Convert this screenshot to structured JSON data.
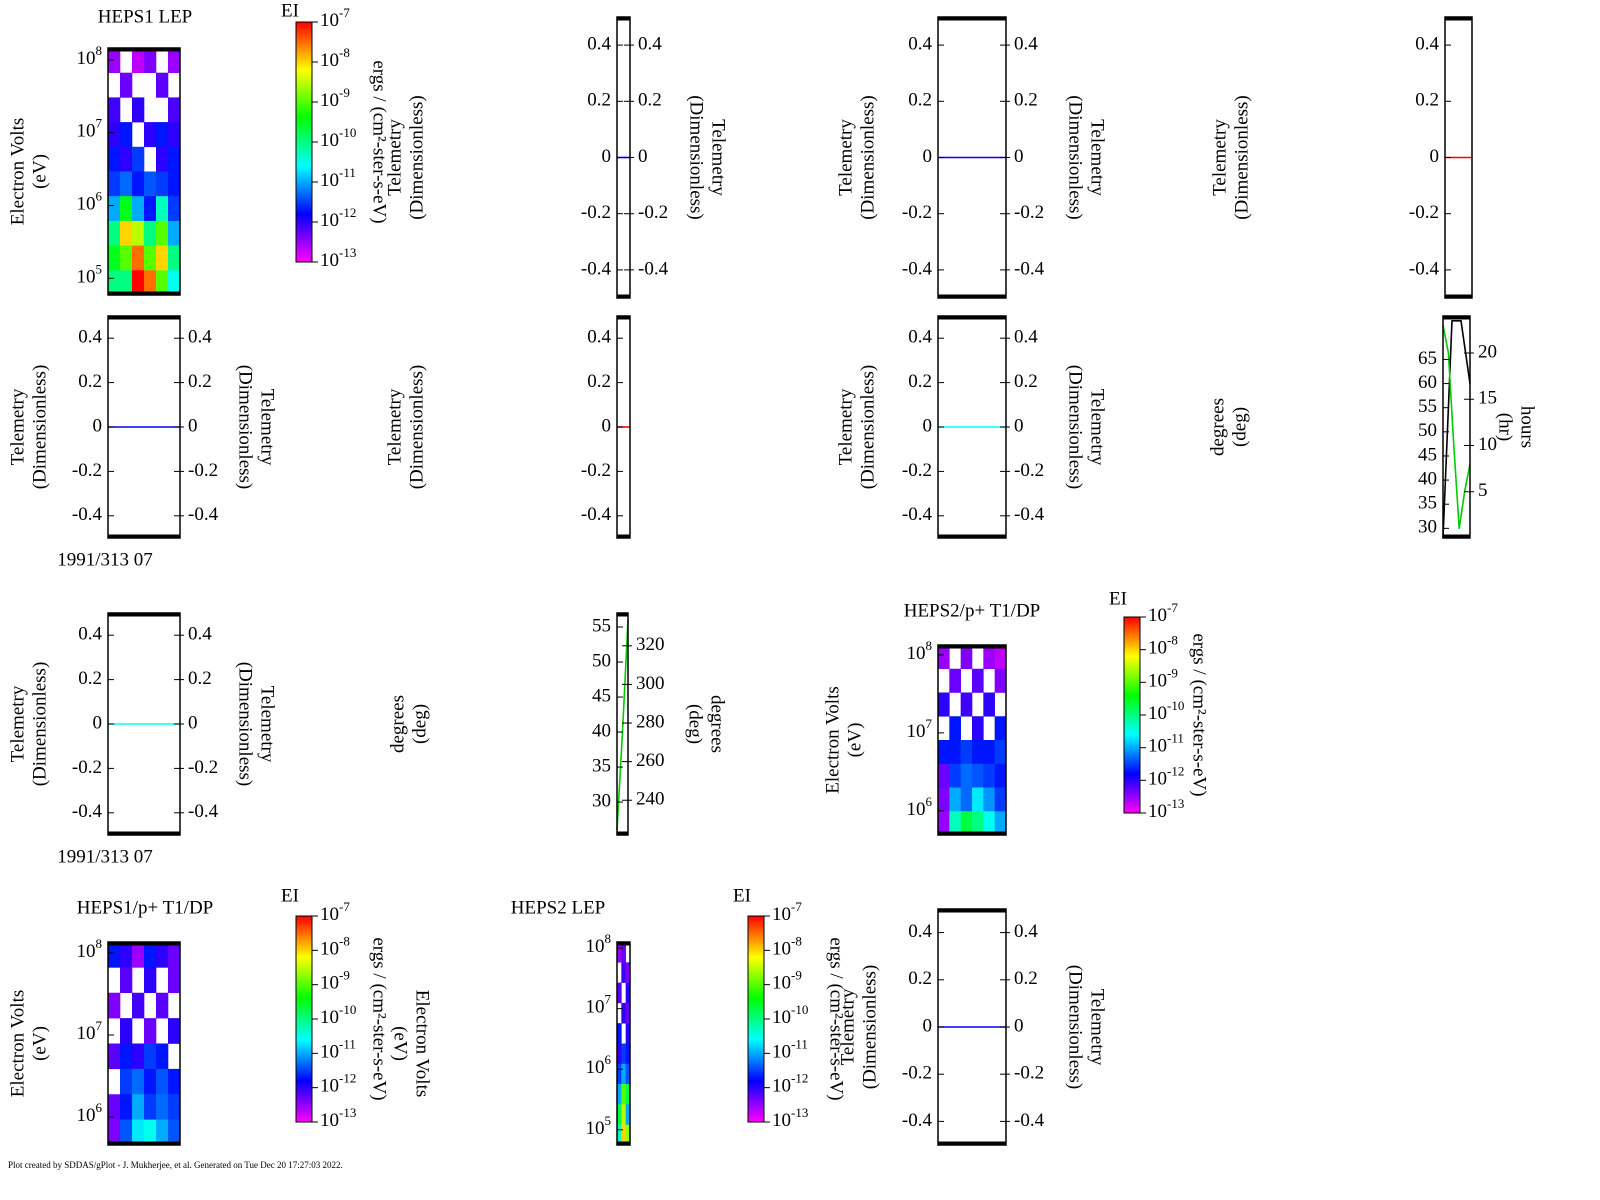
{
  "chart_data": [
    {
      "type": "spectrogram",
      "title": "HEPS1 LEP",
      "ylabel": [
        "Electron Volts",
        "(eV)"
      ],
      "log_y": true,
      "ylim": [
        59000,
        146000000
      ],
      "yticks": [
        {
          "value": 100000,
          "label": "10^5"
        },
        {
          "value": 1000000,
          "label": "10^6"
        },
        {
          "value": 10000000,
          "label": "10^7"
        },
        {
          "value": 100000000,
          "label": "10^8"
        }
      ],
      "z": [
        [
          3e-13,
          null,
          2e-13,
          4e-13,
          null,
          3e-13
        ],
        [
          null,
          5e-13,
          null,
          null,
          6e-13,
          null
        ],
        [
          8e-13,
          null,
          1e-12,
          null,
          null,
          7e-13
        ],
        [
          1e-12,
          2e-12,
          null,
          1e-12,
          2e-12,
          1e-12
        ],
        [
          2e-12,
          1e-12,
          3e-12,
          null,
          1e-12,
          2e-12
        ],
        [
          3e-12,
          5e-12,
          2e-12,
          4e-12,
          3e-12,
          2e-12
        ],
        [
          1e-11,
          3e-10,
          1e-11,
          2e-12,
          5e-11,
          3e-12
        ],
        [
          1e-10,
          1e-08,
          3e-09,
          1e-10,
          1e-09,
          1e-11
        ],
        [
          3e-10,
          1e-09,
          3e-08,
          1e-09,
          1e-08,
          1e-10
        ],
        [
          1e-10,
          1e-10,
          1e-07,
          3e-08,
          1e-09,
          3e-11
        ]
      ],
      "colorbar": {
        "title": "EI",
        "label": "ergs / (cm²-ster-s-eV)",
        "lim": [
          1e-13,
          1e-07
        ],
        "ticks": [
          {
            "value": 1e-07,
            "label": "10^-7"
          },
          {
            "value": 1e-08,
            "label": "10^-8"
          },
          {
            "value": 1e-09,
            "label": "10^-9"
          },
          {
            "value": 1e-10,
            "label": "10^-10"
          },
          {
            "value": 1e-11,
            "label": "10^-11"
          },
          {
            "value": 1e-12,
            "label": "10^-12"
          },
          {
            "value": 1e-13,
            "label": "10^-13"
          }
        ],
        "colorscale": [
          "#ff00ff",
          "#0000ff",
          "#00ffff",
          "#00ff00",
          "#ffff00",
          "#ff0000"
        ]
      }
    },
    {
      "type": "line",
      "ylabel": [
        "Telemetry",
        "(Dimensionless)"
      ],
      "y2label": [
        "Telemetry",
        "(Dimensionless)"
      ],
      "mirror_y": true,
      "ylim": [
        -0.5,
        0.5
      ],
      "yticks": [
        -0.4,
        -0.2,
        0,
        0.2,
        0.4
      ],
      "series": [
        {
          "color": "#0000ff",
          "values": [
            0,
            0
          ]
        }
      ]
    },
    {
      "type": "line",
      "ylabel": [
        "Telemetry",
        "(Dimensionless)"
      ],
      "y2label": [
        "Telemetry",
        "(Dimensionless)"
      ],
      "mirror_y": true,
      "ylim": [
        -0.5,
        0.5
      ],
      "yticks": [
        -0.4,
        -0.2,
        0,
        0.2,
        0.4
      ],
      "series": [
        {
          "color": "#0000ff",
          "values": [
            0,
            0
          ]
        }
      ]
    },
    {
      "type": "line",
      "ylabel": [
        "Telemetry",
        "(Dimensionless)"
      ],
      "ylim": [
        -0.5,
        0.5
      ],
      "yticks": [
        -0.4,
        -0.2,
        0,
        0.2,
        0.4
      ],
      "series": [
        {
          "color": "#ff0000",
          "values": [
            0,
            0
          ]
        }
      ]
    },
    {
      "type": "line",
      "ylabel": [
        "Telemetry",
        "(Dimensionless)"
      ],
      "y2label": [
        "Telemetry",
        "(Dimensionless)"
      ],
      "mirror_y": true,
      "xlabel": "1991/313 07",
      "ylim": [
        -0.5,
        0.5
      ],
      "yticks": [
        -0.4,
        -0.2,
        0,
        0.2,
        0.4
      ],
      "series": [
        {
          "color": "#0000ff",
          "values": [
            0,
            0
          ]
        }
      ]
    },
    {
      "type": "line",
      "ylabel": [
        "Telemetry",
        "(Dimensionless)"
      ],
      "ylim": [
        -0.5,
        0.5
      ],
      "yticks": [
        -0.4,
        -0.2,
        0,
        0.2,
        0.4
      ],
      "series": [
        {
          "color": "#ff0000",
          "values": [
            0,
            0
          ]
        }
      ]
    },
    {
      "type": "line",
      "ylabel": [
        "Telemetry",
        "(Dimensionless)"
      ],
      "y2label": [
        "Telemetry",
        "(Dimensionless)"
      ],
      "mirror_y": true,
      "ylim": [
        -0.5,
        0.5
      ],
      "yticks": [
        -0.4,
        -0.2,
        0,
        0.2,
        0.4
      ],
      "series": [
        {
          "color": "#00ffff",
          "values": [
            0,
            0
          ]
        }
      ]
    },
    {
      "type": "line",
      "ylabel": [
        "degrees",
        "(deg)"
      ],
      "y2label": [
        "hours",
        "(hr)"
      ],
      "ylim": [
        28,
        74
      ],
      "yticks": [
        30,
        35,
        40,
        45,
        50,
        55,
        60,
        65
      ],
      "y2lim": [
        0,
        24
      ],
      "y2ticks": [
        5,
        10,
        15,
        20
      ],
      "series": [
        {
          "color": "#000000",
          "values": [
            28,
            73,
            73,
            60
          ]
        },
        {
          "color": "#00cc00",
          "axis": "y2",
          "values": [
            23,
            20,
            10,
            1,
            5,
            8
          ]
        }
      ]
    },
    {
      "type": "line",
      "ylabel": [
        "Telemetry",
        "(Dimensionless)"
      ],
      "y2label": [
        "Telemetry",
        "(Dimensionless)"
      ],
      "mirror_y": true,
      "xlabel": "1991/313 07",
      "ylim": [
        -0.5,
        0.5
      ],
      "yticks": [
        -0.4,
        -0.2,
        0,
        0.2,
        0.4
      ],
      "series": [
        {
          "color": "#00ffff",
          "values": [
            0,
            0
          ]
        }
      ]
    },
    {
      "type": "line",
      "ylabel": [
        "degrees",
        "(deg)"
      ],
      "y2label": [
        "degrees",
        "(deg)"
      ],
      "ylim": [
        25.3,
        57
      ],
      "yticks": [
        30,
        35,
        40,
        45,
        50,
        55
      ],
      "y2lim": [
        222,
        337
      ],
      "y2ticks": [
        240,
        260,
        280,
        300,
        320
      ],
      "series": [
        {
          "color": "#00cc00",
          "values": [
            26,
            40,
            56
          ]
        }
      ]
    },
    {
      "type": "spectrogram",
      "title": "HEPS2/p+ T1/DP",
      "ylabel": [
        "Electron Volts",
        "(eV)"
      ],
      "log_y": true,
      "ylim": [
        490000,
        134000000
      ],
      "yticks": [
        {
          "value": 1000000,
          "label": "10^6"
        },
        {
          "value": 10000000,
          "label": "10^7"
        },
        {
          "value": 100000000,
          "label": "10^8"
        }
      ],
      "z": [
        [
          3e-13,
          null,
          4e-13,
          null,
          3e-13,
          2e-13
        ],
        [
          null,
          5e-13,
          null,
          6e-13,
          null,
          4e-13
        ],
        [
          1e-12,
          null,
          8e-13,
          null,
          1e-12,
          null
        ],
        [
          null,
          2e-12,
          null,
          1e-12,
          null,
          2e-12
        ],
        [
          2e-12,
          2e-12,
          3e-12,
          2e-12,
          2e-12,
          3e-12
        ],
        [
          5e-13,
          3e-12,
          5e-12,
          4e-12,
          3e-12,
          2e-12
        ],
        [
          4e-13,
          1e-11,
          5e-12,
          2e-11,
          8e-12,
          3e-12
        ],
        [
          3e-13,
          5e-11,
          2e-10,
          1e-10,
          3e-11,
          1e-11
        ]
      ],
      "colorbar": {
        "title": "EI",
        "label": "ergs / (cm²-ster-s-eV)",
        "lim": [
          1e-13,
          1e-07
        ],
        "ticks": [
          {
            "value": 1e-07,
            "label": "10^-7"
          },
          {
            "value": 1e-08,
            "label": "10^-8"
          },
          {
            "value": 1e-09,
            "label": "10^-9"
          },
          {
            "value": 1e-10,
            "label": "10^-10"
          },
          {
            "value": 1e-11,
            "label": "10^-11"
          },
          {
            "value": 1e-12,
            "label": "10^-12"
          },
          {
            "value": 1e-13,
            "label": "10^-13"
          }
        ],
        "colorscale": [
          "#ff00ff",
          "#0000ff",
          "#00ffff",
          "#00ff00",
          "#ffff00",
          "#ff0000"
        ]
      }
    },
    {
      "type": "spectrogram",
      "title": "HEPS1/p+ T1/DP",
      "ylabel": [
        "Electron Volts",
        "(eV)"
      ],
      "log_y": true,
      "ylim": [
        457000,
        136000000
      ],
      "yticks": [
        {
          "value": 1000000,
          "label": "10^6"
        },
        {
          "value": 10000000,
          "label": "10^7"
        },
        {
          "value": 100000000,
          "label": "10^8"
        }
      ],
      "z": [
        [
          2e-12,
          1e-12,
          3e-13,
          2e-12,
          1e-12,
          5e-13
        ],
        [
          null,
          6e-13,
          null,
          1e-12,
          null,
          5e-13
        ],
        [
          4e-13,
          null,
          8e-13,
          null,
          6e-13,
          null
        ],
        [
          null,
          1e-12,
          null,
          5e-13,
          null,
          1e-12
        ],
        [
          6e-13,
          2e-12,
          1e-12,
          3e-12,
          2e-12,
          null
        ],
        [
          null,
          3e-12,
          5e-12,
          2e-12,
          4e-12,
          2e-12
        ],
        [
          5e-13,
          2e-12,
          1e-11,
          3e-12,
          5e-12,
          3e-12
        ],
        [
          4e-13,
          4e-12,
          2e-11,
          3e-11,
          1e-11,
          4e-12
        ]
      ],
      "colorbar": {
        "title": "EI",
        "label": "ergs / (cm²-ster-s-eV)",
        "lim": [
          1e-13,
          1e-07
        ],
        "ticks": [
          {
            "value": 1e-07,
            "label": "10^-7"
          },
          {
            "value": 1e-08,
            "label": "10^-8"
          },
          {
            "value": 1e-09,
            "label": "10^-9"
          },
          {
            "value": 1e-10,
            "label": "10^-10"
          },
          {
            "value": 1e-11,
            "label": "10^-11"
          },
          {
            "value": 1e-12,
            "label": "10^-12"
          },
          {
            "value": 1e-13,
            "label": "10^-13"
          }
        ],
        "colorscale": [
          "#ff00ff",
          "#0000ff",
          "#00ffff",
          "#00ff00",
          "#ffff00",
          "#ff0000"
        ]
      }
    },
    {
      "type": "spectrogram",
      "title": "HEPS2 LEP",
      "ylabel": [
        "Electron Volts",
        "(eV)"
      ],
      "log_y": true,
      "ylim": [
        56000,
        126000000
      ],
      "yticks": [
        {
          "value": 100000,
          "label": "10^5"
        },
        {
          "value": 1000000,
          "label": "10^6"
        },
        {
          "value": 10000000,
          "label": "10^7"
        },
        {
          "value": 100000000,
          "label": "10^8"
        }
      ],
      "z": [
        [
          3e-13,
          5e-13,
          null
        ],
        [
          null,
          8e-13,
          4e-13
        ],
        [
          6e-13,
          null,
          1e-12
        ],
        [
          null,
          1e-12,
          5e-13
        ],
        [
          2e-12,
          null,
          1e-12
        ],
        [
          1e-12,
          3e-12,
          2e-12
        ],
        [
          3e-12,
          1e-11,
          4e-12
        ],
        [
          1e-11,
          1e-09,
          2e-10
        ],
        [
          2e-10,
          3e-09,
          1e-11
        ],
        [
          5e-11,
          1e-08,
          2e-09
        ]
      ],
      "colorbar": {
        "title": "EI",
        "label": "ergs / (cm²-ster-s-eV)",
        "lim": [
          1e-13,
          1e-07
        ],
        "ticks": [
          {
            "value": 1e-07,
            "label": "10^-7"
          },
          {
            "value": 1e-08,
            "label": "10^-8"
          },
          {
            "value": 1e-09,
            "label": "10^-9"
          },
          {
            "value": 1e-10,
            "label": "10^-10"
          },
          {
            "value": 1e-11,
            "label": "10^-11"
          },
          {
            "value": 1e-12,
            "label": "10^-12"
          },
          {
            "value": 1e-13,
            "label": "10^-13"
          }
        ],
        "colorscale": [
          "#ff00ff",
          "#0000ff",
          "#00ffff",
          "#00ff00",
          "#ffff00",
          "#ff0000"
        ]
      }
    },
    {
      "type": "line",
      "ylabel": [
        "Telemetry",
        "(Dimensionless)"
      ],
      "y2label": [
        "Telemetry",
        "(Dimensionless)"
      ],
      "mirror_y": true,
      "ylim": [
        -0.5,
        0.5
      ],
      "yticks": [
        -0.4,
        -0.2,
        0,
        0.2,
        0.4
      ],
      "series": [
        {
          "color": "#0000ff",
          "values": [
            0,
            0
          ]
        }
      ]
    }
  ],
  "footer": "Plot created by SDDAS/gPlot - J. Mukherjee, et al.  Generated on Tue Dec 20 17:27:03 2022."
}
